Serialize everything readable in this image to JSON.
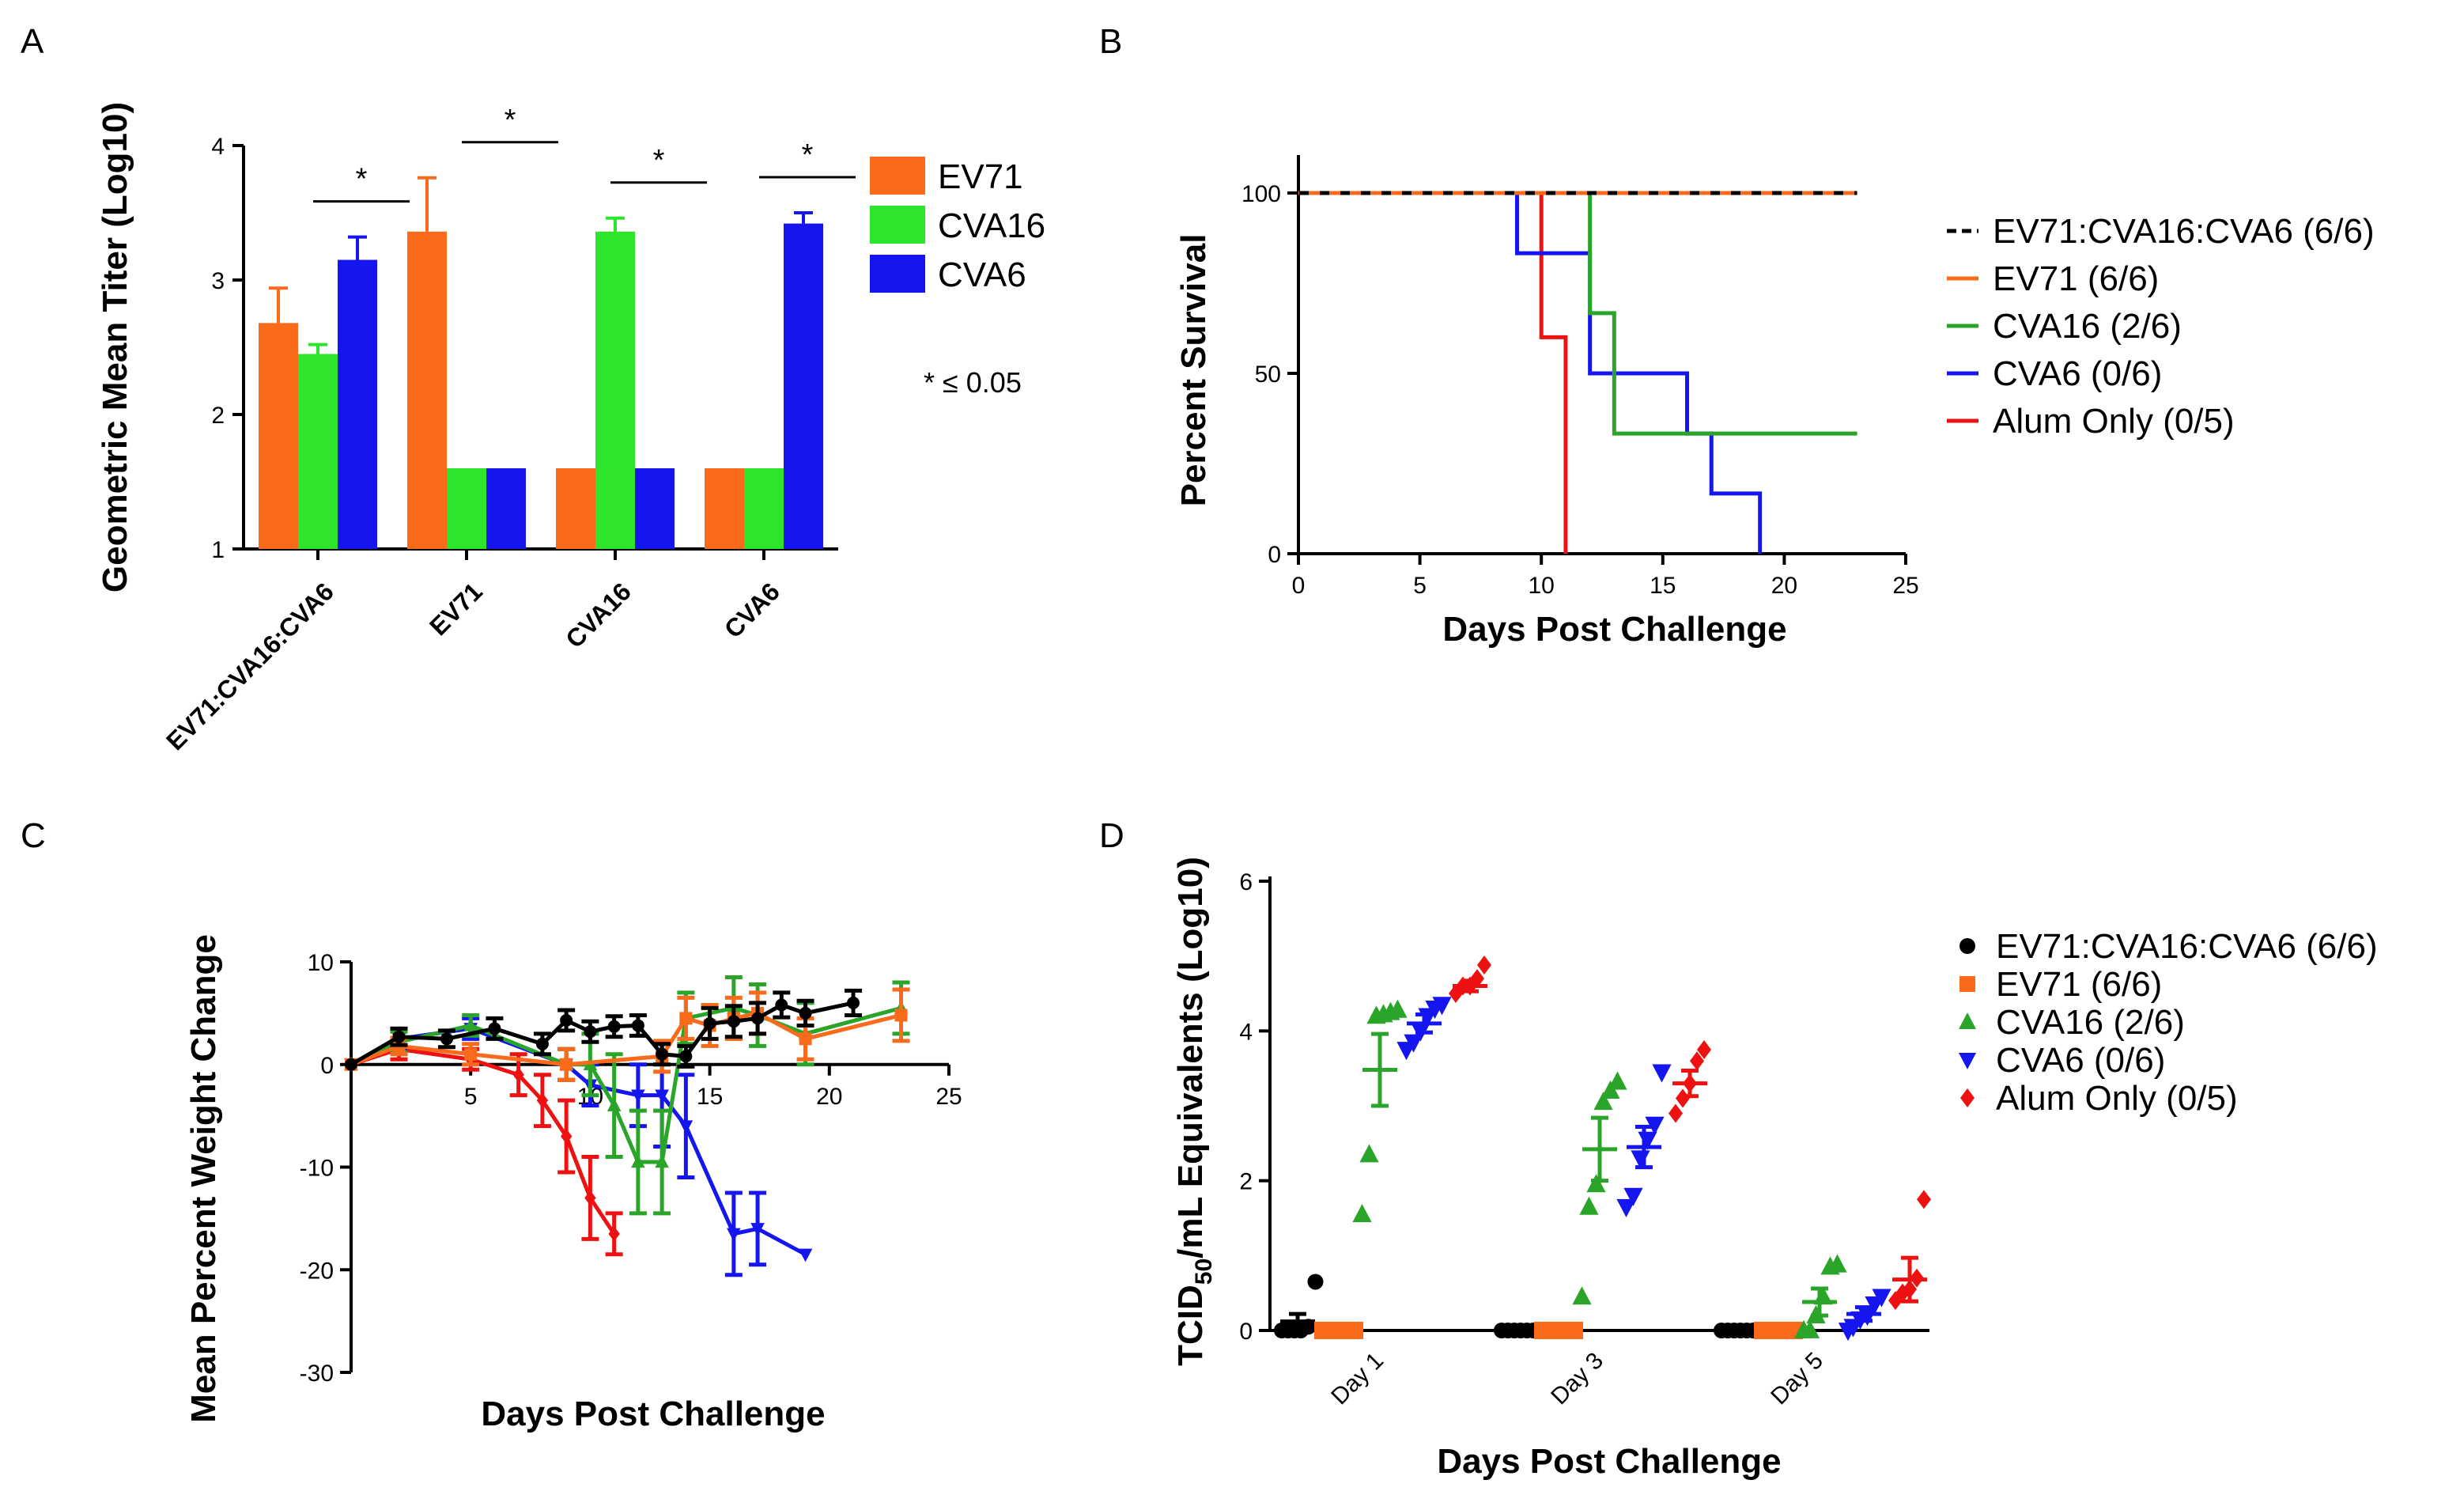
{
  "panels": {
    "A": {
      "letter": "A",
      "chart_data": {
        "type": "bar",
        "title": "",
        "xlabel": "",
        "ylabel": "Geometric Mean Titer (Log10)",
        "ylim": [
          1,
          4
        ],
        "yticks": [
          "1",
          "2",
          "3",
          "4"
        ],
        "categories": [
          "EV71:CVA16:CVA6",
          "EV71",
          "CVA16",
          "CVA6"
        ],
        "series": [
          {
            "name": "EV71",
            "color": "#f96a1b",
            "values": [
              2.68,
              3.36,
              1.6,
              1.6
            ],
            "errors": [
              0.26,
              0.4,
              0,
              0
            ]
          },
          {
            "name": "CVA16",
            "color": "#2de52d",
            "values": [
              2.45,
              1.6,
              3.36,
              1.6
            ],
            "errors": [
              0.07,
              0,
              0.1,
              0
            ]
          },
          {
            "name": "CVA6",
            "color": "#1515f0",
            "values": [
              3.15,
              1.6,
              1.6,
              3.42
            ],
            "errors": [
              0.17,
              0,
              0,
              0.08
            ]
          }
        ],
        "significance": {
          "marker": "*",
          "note": "* ≤ 0.05"
        }
      }
    },
    "B": {
      "letter": "B",
      "chart_data": {
        "type": "line",
        "step": true,
        "title": "",
        "xlabel": "Days Post Challenge",
        "ylabel": "Percent Survival",
        "xlim": [
          0,
          25
        ],
        "ylim": [
          0,
          100
        ],
        "xticks": [
          "0",
          "5",
          "10",
          "15",
          "20",
          "25"
        ],
        "yticks": [
          "0",
          "50",
          "100"
        ],
        "series": [
          {
            "name": "EV71:CVA16:CVA6 (6/6)",
            "color": "#000000",
            "dashed": true,
            "x": [
              0,
              23
            ],
            "y": [
              100,
              100
            ]
          },
          {
            "name": "EV71 (6/6)",
            "color": "#f96a1b",
            "dashed": true,
            "x": [
              0,
              23
            ],
            "y": [
              100,
              100
            ]
          },
          {
            "name": "CVA16 (2/6)",
            "color": "#2aa52a",
            "x": [
              0,
              12,
              13,
              23
            ],
            "y": [
              100,
              66.7,
              33.3,
              33.3
            ]
          },
          {
            "name": "CVA6 (0/6)",
            "color": "#1515f0",
            "x": [
              0,
              9,
              12,
              16,
              17,
              19
            ],
            "y": [
              100,
              83.3,
              50,
              33.3,
              16.7,
              0
            ]
          },
          {
            "name": "Alum Only (0/5)",
            "color": "#ee1111",
            "x": [
              0,
              10,
              11
            ],
            "y": [
              100,
              60,
              0
            ]
          }
        ]
      }
    },
    "C": {
      "letter": "C",
      "chart_data": {
        "type": "line",
        "title": "",
        "xlabel": "Days Post Challenge",
        "ylabel": "Mean Percent Weight Change",
        "xlim": [
          0,
          25
        ],
        "ylim": [
          -30,
          10
        ],
        "xticks": [
          "5",
          "10",
          "15",
          "20",
          "25"
        ],
        "yticks": [
          "10",
          "0",
          "-10",
          "-20",
          "-30"
        ],
        "series": [
          {
            "name": "EV71:CVA16:CVA6",
            "color": "#000000",
            "marker": "circle",
            "x": [
              0,
              2,
              4,
              6,
              8,
              9,
              10,
              11,
              12,
              13,
              14,
              15,
              16,
              17,
              18,
              19,
              21
            ],
            "y": [
              0,
              2.7,
              2.5,
              3.5,
              2,
              4.3,
              3.2,
              3.7,
              3.8,
              1,
              0.8,
              4,
              4.2,
              4.5,
              5.8,
              5,
              6
            ],
            "err": [
              0,
              0.8,
              0.8,
              1,
              1,
              1,
              1,
              1,
              1,
              1,
              1,
              1.5,
              1.5,
              1.5,
              1.2,
              1.2,
              1.2
            ]
          },
          {
            "name": "EV71",
            "color": "#f96a1b",
            "marker": "square",
            "x": [
              0,
              2,
              5,
              9,
              13,
              14,
              15,
              16,
              17,
              19,
              23
            ],
            "y": [
              0,
              1.8,
              1,
              0,
              0.8,
              4.5,
              3.8,
              4.5,
              5,
              2.5,
              4.8
            ],
            "err": [
              0,
              0.8,
              1,
              1.5,
              1.5,
              2,
              2,
              2,
              2,
              2,
              2.5
            ]
          },
          {
            "name": "CVA16",
            "color": "#2aa52a",
            "marker": "triangle-up",
            "x": [
              0,
              2,
              5,
              9,
              10,
              11,
              12,
              13,
              14,
              16,
              17,
              19,
              23
            ],
            "y": [
              0,
              2.2,
              3.8,
              0,
              0,
              -4,
              -9.5,
              -9.5,
              4.5,
              5.5,
              4.8,
              3,
              5.5
            ],
            "err": [
              0,
              1,
              1,
              1.5,
              3,
              5,
              5,
              5,
              2.5,
              3,
              3,
              3,
              2.5
            ]
          },
          {
            "name": "CVA6",
            "color": "#1515f0",
            "marker": "triangle-down",
            "x": [
              0,
              2,
              5,
              9,
              10,
              12,
              13,
              14,
              16,
              17,
              19
            ],
            "y": [
              0,
              2.5,
              3.5,
              0,
              -2,
              -3,
              -3,
              -6,
              -16.5,
              -16,
              -18.5
            ],
            "err": [
              0,
              1,
              1,
              1.5,
              2,
              3,
              5,
              5,
              4,
              3.5,
              0
            ]
          },
          {
            "name": "Alum Only",
            "color": "#ee1111",
            "marker": "diamond",
            "x": [
              0,
              2,
              5,
              7,
              8,
              9,
              10,
              11
            ],
            "y": [
              0,
              1.5,
              0.5,
              -1,
              -3.5,
              -7,
              -13,
              -16.5
            ],
            "err": [
              0,
              1,
              1,
              2,
              2.5,
              3.5,
              4,
              2
            ]
          }
        ]
      }
    },
    "D": {
      "letter": "D",
      "chart_data": {
        "type": "scatter",
        "title": "",
        "xlabel": "Days Post Challenge",
        "ylabel": "TCID50/mL Equivalents (Log10)",
        "ylabel_parts": {
          "pre": "TCID",
          "sub": "50",
          "post": "/mL Equivalents (Log10)"
        },
        "ylim": [
          0,
          6
        ],
        "yticks": [
          "0",
          "2",
          "4",
          "6"
        ],
        "categories": [
          "Day 1",
          "Day 3",
          "Day 5"
        ],
        "series": [
          {
            "name": "EV71:CVA16:CVA6 (6/6)",
            "color": "#000000",
            "marker": "circle",
            "points": [
              [
                0,
                0,
                0,
                0,
                0.05,
                0.65
              ],
              [
                0,
                0,
                0,
                0,
                0,
                0
              ],
              [
                0,
                0,
                0,
                0,
                0,
                0
              ]
            ],
            "mean": [
              0.12,
              0,
              0
            ],
            "sem": [
              0.1,
              0,
              0
            ]
          },
          {
            "name": "EV71 (6/6)",
            "color": "#f96a1b",
            "marker": "square",
            "points": [
              [
                0,
                0,
                0,
                0,
                0,
                0
              ],
              [
                0,
                0,
                0,
                0,
                0,
                0
              ],
              [
                0,
                0,
                0,
                0,
                0,
                0
              ]
            ],
            "mean": [
              0,
              0,
              0
            ],
            "sem": [
              0,
              0,
              0
            ]
          },
          {
            "name": "CVA16 (2/6)",
            "color": "#2aa52a",
            "marker": "triangle-up",
            "points": [
              [
                1.55,
                2.35,
                4.2,
                4.22,
                4.25,
                4.28
              ],
              [
                0.45,
                1.65,
                1.95,
                3.05,
                3.2,
                3.32
              ],
              [
                0,
                0,
                0.2,
                0.45,
                0.85,
                0.88
              ]
            ],
            "mean": [
              3.48,
              2.42,
              0.38
            ],
            "sem": [
              0.48,
              0.42,
              0.18
            ]
          },
          {
            "name": "CVA6 (0/6)",
            "color": "#1515f0",
            "marker": "triangle-down",
            "points": [
              [
                3.75,
                3.85,
                4.0,
                4.2,
                4.3,
                4.35
              ],
              [
                1.65,
                1.8,
                2.3,
                2.55,
                2.75,
                3.45
              ],
              [
                0,
                0.05,
                0.15,
                0.2,
                0.35,
                0.45
              ]
            ],
            "mean": [
              4.1,
              2.45,
              0.22
            ],
            "sem": [
              0.12,
              0.27,
              0.09
            ]
          },
          {
            "name": "Alum Only (0/5)",
            "color": "#ee1111",
            "marker": "diamond",
            "points": [
              [
                4.5,
                4.6,
                4.6,
                4.7,
                4.88
              ],
              [
                2.9,
                3.1,
                3.3,
                3.6,
                3.75
              ],
              [
                0.4,
                0.5,
                0.55,
                0.7,
                1.75
              ]
            ],
            "mean": [
              4.6,
              3.3,
              0.68
            ],
            "sem": [
              0.07,
              0.17,
              0.29
            ]
          }
        ]
      }
    }
  }
}
